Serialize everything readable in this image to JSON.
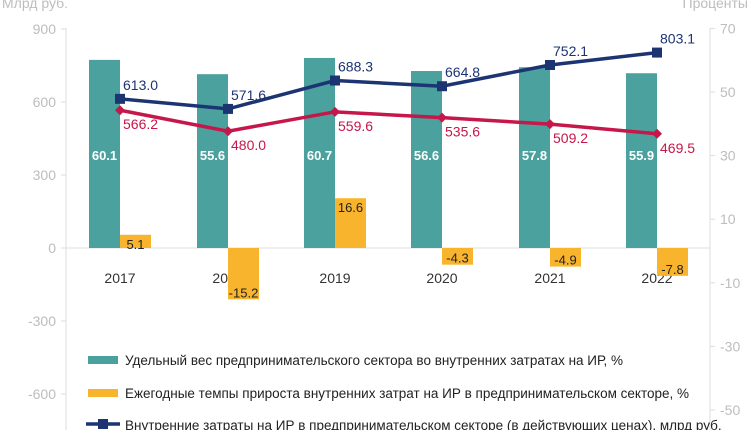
{
  "chart_data": {
    "type": "bar",
    "left_axis": {
      "label": "Млрд руб.",
      "ticks": [
        900,
        600,
        300,
        0,
        -300,
        -600
      ],
      "range": [
        -600,
        900
      ]
    },
    "right_axis": {
      "label": "Проценты",
      "ticks": [
        70,
        50,
        30,
        10,
        -10,
        -30,
        -50
      ],
      "range": [
        -50,
        70
      ]
    },
    "categories": [
      "2017",
      "2018",
      "2019",
      "2020",
      "2021",
      "2022"
    ],
    "series": [
      {
        "name": "Удельный вес предпринимательского  сектора во внутренних затратах на ИР, %",
        "type": "bar",
        "axis": "right",
        "color": "#4aa19d",
        "values": [
          60.1,
          55.6,
          60.7,
          56.6,
          57.8,
          55.9
        ],
        "labels": [
          "60.1",
          "55.6",
          "60.7",
          "56.6",
          "57.8",
          "55.9"
        ]
      },
      {
        "name": "Ежегодные темпы прироста внутренних затрат на ИР в предпринимательском секторе, %",
        "type": "bar",
        "axis": "right",
        "color": "#f8b42c",
        "values": [
          5.1,
          -15.2,
          16.6,
          -4.3,
          -4.9,
          -7.8
        ],
        "labels": [
          "5.1",
          "-15.2",
          "16.6",
          "-4.3",
          "-4.9",
          "-7.8"
        ]
      },
      {
        "name": "Внутренние затраты на ИР в предпринимательском секторе (в действующих ценах), млрд руб.",
        "type": "line",
        "axis": "left",
        "color": "#1d3473",
        "values": [
          613.0,
          571.6,
          688.3,
          664.8,
          752.1,
          803.1
        ],
        "labels": [
          "613.0",
          "571.6",
          "688.3",
          "664.8",
          "752.1",
          "803.1"
        ]
      },
      {
        "name": "",
        "type": "line",
        "axis": "left",
        "color": "#c5174a",
        "values": [
          566.2,
          480.0,
          559.6,
          535.6,
          509.2,
          469.5
        ],
        "labels": [
          "566.2",
          "480.0",
          "559.6",
          "535.6",
          "509.2",
          "469.5"
        ]
      }
    ]
  }
}
